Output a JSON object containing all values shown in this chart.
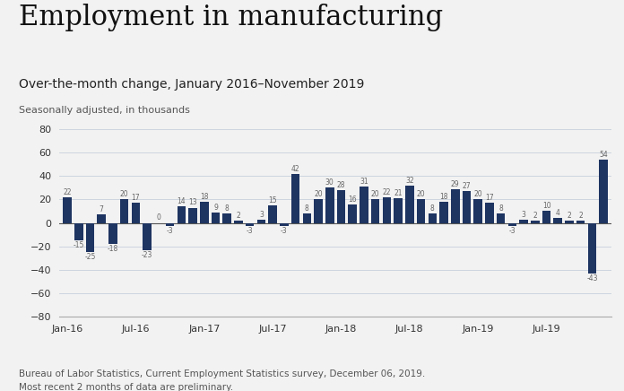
{
  "title": "Employment in manufacturing",
  "subtitle": "Over-the-month change, January 2016–November 2019",
  "subtitle2": "Seasonally adjusted, in thousands",
  "footnote1": "Bureau of Labor Statistics, Current Employment Statistics survey, December 06, 2019.",
  "footnote2": "Most recent 2 months of data are preliminary.",
  "bar_color": "#1e3461",
  "background_color": "#f2f2f2",
  "ylim": [
    -80,
    80
  ],
  "yticks": [
    -80,
    -60,
    -40,
    -20,
    0,
    20,
    40,
    60,
    80
  ],
  "values": [
    22,
    -15,
    -25,
    7,
    -18,
    20,
    17,
    -23,
    0,
    -3,
    14,
    13,
    18,
    9,
    8,
    2,
    -3,
    3,
    15,
    -3,
    42,
    8,
    20,
    30,
    28,
    16,
    31,
    20,
    22,
    21,
    32,
    20,
    8,
    18,
    29,
    27,
    20,
    17,
    8,
    -3,
    3,
    2,
    10,
    4,
    2,
    2,
    -43,
    54
  ],
  "xtick_labels": [
    "Jan-16",
    "Jul-16",
    "Jan-17",
    "Jul-17",
    "Jan-18",
    "Jul-18",
    "Jan-19",
    "Jul-19"
  ],
  "xtick_positions": [
    0,
    6,
    12,
    18,
    24,
    30,
    36,
    42
  ],
  "title_fontsize": 22,
  "subtitle_fontsize": 10,
  "subtitle2_fontsize": 8,
  "footnote_fontsize": 7.5,
  "label_fontsize": 5.5,
  "tick_fontsize": 8
}
